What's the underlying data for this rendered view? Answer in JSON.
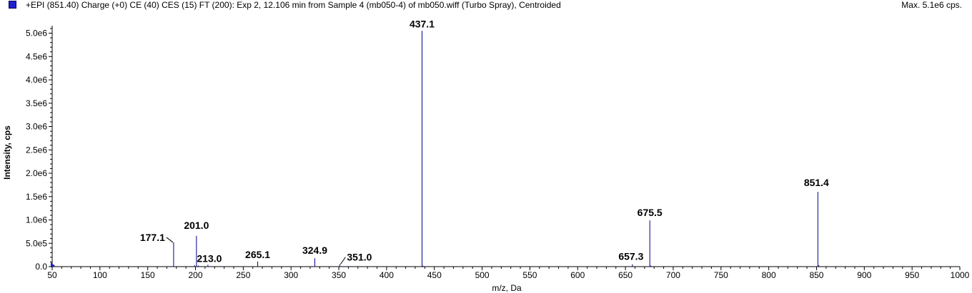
{
  "header": {
    "title": "+EPI (851.40) Charge (+0) CE (40) CES (15) FT (200): Exp 2, 12.106 min from Sample 4 (mb050-4) of mb050.wiff (Turbo Spray), Centroided",
    "max_label": "Max. 5.1e6 cps.",
    "swatch_color": "#1f1fd0"
  },
  "chart_data": {
    "type": "bar",
    "xlabel": "m/z, Da",
    "ylabel": "Intensity, cps",
    "xlim": [
      50,
      1000
    ],
    "ylim": [
      0,
      5100000.0
    ],
    "x_ticks": [
      "50",
      "100",
      "150",
      "200",
      "250",
      "300",
      "350",
      "400",
      "450",
      "500",
      "550",
      "600",
      "650",
      "700",
      "750",
      "800",
      "850",
      "900",
      "950",
      "1000"
    ],
    "y_ticks": [
      "0.0",
      "5.0e5",
      "1.0e6",
      "1.5e6",
      "2.0e6",
      "2.5e6",
      "3.0e6",
      "3.5e6",
      "4.0e6",
      "4.5e6",
      "5.0e6"
    ],
    "line_color": "#00008b",
    "peaks": [
      {
        "x": 177.1,
        "y": 520000,
        "label": "177.1"
      },
      {
        "x": 201.0,
        "y": 660000,
        "label": "201.0"
      },
      {
        "x": 213.0,
        "y": 40000,
        "label": "213.0"
      },
      {
        "x": 265.1,
        "y": 110000,
        "label": "265.1"
      },
      {
        "x": 324.9,
        "y": 180000,
        "label": "324.9"
      },
      {
        "x": 351.0,
        "y": 50000,
        "label": "351.0"
      },
      {
        "x": 437.1,
        "y": 5050000,
        "label": "437.1"
      },
      {
        "x": 657.3,
        "y": 50000,
        "label": "657.3"
      },
      {
        "x": 675.5,
        "y": 990000,
        "label": "675.5"
      },
      {
        "x": 851.4,
        "y": 1600000,
        "label": "851.4"
      }
    ],
    "minor_peaks": [
      {
        "x": 199.0,
        "y": 30000
      },
      {
        "x": 203.0,
        "y": 25000
      },
      {
        "x": 438.1,
        "y": 20000
      },
      {
        "x": 852.4,
        "y": 30000
      },
      {
        "x": 676.5,
        "y": 20000
      },
      {
        "x": 52.0,
        "y": 20000
      }
    ]
  }
}
